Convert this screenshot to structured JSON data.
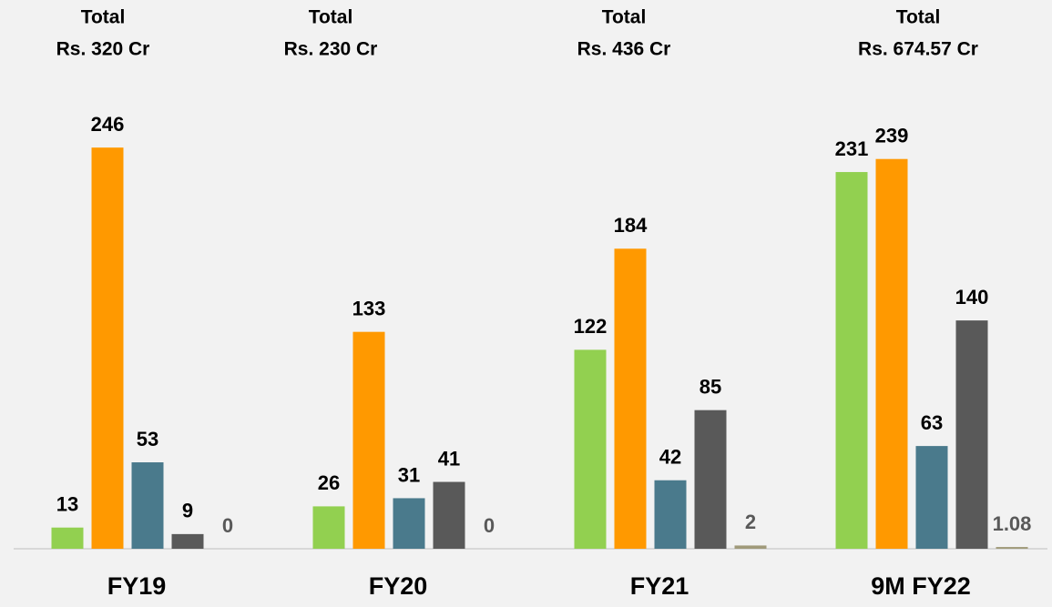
{
  "chart_data": {
    "type": "bar",
    "categories": [
      "FY19",
      "FY20",
      "FY21",
      "9M FY22"
    ],
    "annotations": [
      [
        "Total",
        "Rs. 320 Cr"
      ],
      [
        "Total",
        "Rs. 230 Cr"
      ],
      [
        "Total",
        "Rs. 436 Cr"
      ],
      [
        "Total",
        "Rs. 674.57 Cr"
      ]
    ],
    "series": [
      {
        "color": "#92d050",
        "label_color": "#000000",
        "values": [
          13,
          26,
          122,
          231
        ]
      },
      {
        "color": "#ff9900",
        "label_color": "#000000",
        "values": [
          246,
          133,
          184,
          239
        ]
      },
      {
        "color": "#4a7a8c",
        "label_color": "#000000",
        "values": [
          53,
          31,
          42,
          63
        ]
      },
      {
        "color": "#595959",
        "label_color": "#000000",
        "values": [
          9,
          41,
          85,
          140
        ]
      },
      {
        "color": "#a09a7a",
        "label_color": "#595959",
        "values": [
          0,
          0,
          2,
          1.08
        ]
      }
    ],
    "ylim": [
      0,
      250
    ]
  }
}
